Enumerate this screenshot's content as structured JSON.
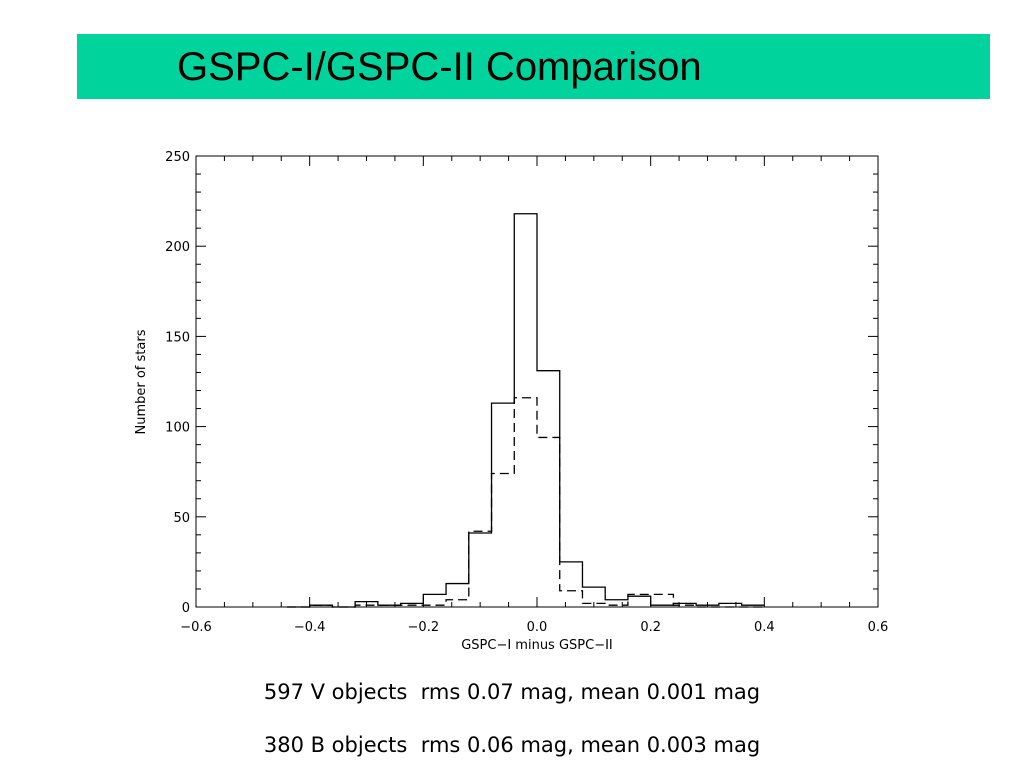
{
  "slide": {
    "title": "GSPC-I/GSPC-II Comparison",
    "caption_v": "597 V objects  rms 0.07 mag, mean 0.001 mag",
    "caption_b": "380 B objects  rms 0.06 mag, mean 0.003 mag",
    "title_bar_color": "#00d39c"
  },
  "chart_data": {
    "type": "histogram",
    "title": "",
    "xlabel": "GSPC−I minus GSPC−II",
    "ylabel": "Number of stars",
    "xlim": [
      -0.6,
      0.6
    ],
    "ylim": [
      0,
      250
    ],
    "xticks": [
      -0.6,
      -0.4,
      -0.2,
      0.0,
      0.2,
      0.4,
      0.6
    ],
    "xtick_labels": [
      "−0.6",
      "−0.4",
      "−0.2",
      "0.0",
      "0.2",
      "0.4",
      "0.6"
    ],
    "yticks": [
      0,
      50,
      100,
      150,
      200,
      250
    ],
    "ytick_labels": [
      "0",
      "50",
      "100",
      "150",
      "200",
      "250"
    ],
    "grid": false,
    "series": [
      {
        "style": "solid",
        "bins": [
          {
            "x0": -0.44,
            "x1": -0.4,
            "y": 0
          },
          {
            "x0": -0.4,
            "x1": -0.36,
            "y": 1
          },
          {
            "x0": -0.36,
            "x1": -0.32,
            "y": 0
          },
          {
            "x0": -0.32,
            "x1": -0.28,
            "y": 3
          },
          {
            "x0": -0.28,
            "x1": -0.24,
            "y": 1
          },
          {
            "x0": -0.24,
            "x1": -0.2,
            "y": 2
          },
          {
            "x0": -0.2,
            "x1": -0.16,
            "y": 7
          },
          {
            "x0": -0.16,
            "x1": -0.12,
            "y": 13
          },
          {
            "x0": -0.12,
            "x1": -0.08,
            "y": 41
          },
          {
            "x0": -0.08,
            "x1": -0.04,
            "y": 113
          },
          {
            "x0": -0.04,
            "x1": 0.0,
            "y": 218
          },
          {
            "x0": 0.0,
            "x1": 0.04,
            "y": 131
          },
          {
            "x0": 0.04,
            "x1": 0.08,
            "y": 25
          },
          {
            "x0": 0.08,
            "x1": 0.12,
            "y": 11
          },
          {
            "x0": 0.12,
            "x1": 0.16,
            "y": 4
          },
          {
            "x0": 0.16,
            "x1": 0.2,
            "y": 6
          },
          {
            "x0": 0.2,
            "x1": 0.24,
            "y": 1
          },
          {
            "x0": 0.24,
            "x1": 0.28,
            "y": 2
          },
          {
            "x0": 0.28,
            "x1": 0.32,
            "y": 1
          },
          {
            "x0": 0.32,
            "x1": 0.36,
            "y": 2
          },
          {
            "x0": 0.36,
            "x1": 0.4,
            "y": 1
          }
        ]
      },
      {
        "style": "dashed",
        "bins": [
          {
            "x0": -0.44,
            "x1": -0.4,
            "y": 0
          },
          {
            "x0": -0.4,
            "x1": -0.36,
            "y": 1
          },
          {
            "x0": -0.36,
            "x1": -0.32,
            "y": 0
          },
          {
            "x0": -0.32,
            "x1": -0.28,
            "y": 1
          },
          {
            "x0": -0.28,
            "x1": -0.24,
            "y": 1
          },
          {
            "x0": -0.24,
            "x1": -0.2,
            "y": 1
          },
          {
            "x0": -0.2,
            "x1": -0.16,
            "y": 1
          },
          {
            "x0": -0.16,
            "x1": -0.12,
            "y": 4
          },
          {
            "x0": -0.12,
            "x1": -0.08,
            "y": 42
          },
          {
            "x0": -0.08,
            "x1": -0.04,
            "y": 74
          },
          {
            "x0": -0.04,
            "x1": 0.0,
            "y": 116
          },
          {
            "x0": 0.0,
            "x1": 0.04,
            "y": 94
          },
          {
            "x0": 0.04,
            "x1": 0.08,
            "y": 9
          },
          {
            "x0": 0.08,
            "x1": 0.12,
            "y": 2
          },
          {
            "x0": 0.12,
            "x1": 0.16,
            "y": 1
          },
          {
            "x0": 0.16,
            "x1": 0.2,
            "y": 7
          },
          {
            "x0": 0.2,
            "x1": 0.24,
            "y": 7
          },
          {
            "x0": 0.24,
            "x1": 0.28,
            "y": 1
          },
          {
            "x0": 0.28,
            "x1": 0.32,
            "y": 0
          },
          {
            "x0": 0.32,
            "x1": 0.36,
            "y": 0
          },
          {
            "x0": 0.36,
            "x1": 0.4,
            "y": 0
          }
        ]
      }
    ]
  }
}
